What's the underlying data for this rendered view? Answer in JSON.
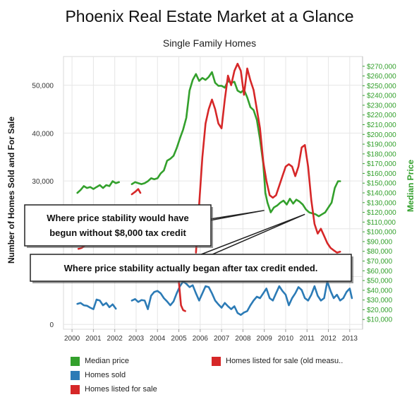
{
  "title": "Phoenix Real Estate Market at a Glance",
  "subtitle": "Single Family Homes",
  "colors": {
    "median_price": "#33a02c",
    "homes_sold": "#2c7bb6",
    "homes_listed": "#d62728",
    "homes_listed_old": "#d62728",
    "right_axis": "#33a02c",
    "grid": "#e6e6e6"
  },
  "legend": [
    {
      "label": "Median price",
      "color": "#33a02c"
    },
    {
      "label": "Homes sold",
      "color": "#2c7bb6"
    },
    {
      "label": "Homes listed for sale",
      "color": "#d62728"
    },
    {
      "label": "Homes listed for sale (old measu..",
      "color": "#d62728"
    }
  ],
  "annotations": [
    {
      "text": "Where price stability would have begun without $8,000 tax credit",
      "lines": [
        "Where price stability would have",
        "begun without $8,000 tax credit"
      ],
      "target_x": 2009.0,
      "target_y": 122000,
      "axis": "right"
    },
    {
      "text": "Where price stability actually began after tax credit ended.",
      "lines": [
        "Where price stability actually began after tax credit ended."
      ],
      "target_x": 2010.9,
      "target_y": 118000,
      "axis": "right"
    }
  ],
  "chart_data": {
    "type": "line",
    "title": "Phoenix Real Estate Market at a Glance",
    "subtitle": "Single Family Homes",
    "xlabel": "",
    "ylabel": "Number of Homes Sold and For Sale",
    "y2label": "Median Price",
    "xlim": [
      1999.6,
      2013.6
    ],
    "ylim": [
      -1000,
      56000
    ],
    "y2lim": [
      0,
      280000
    ],
    "x_ticks": [
      "2000",
      "2001",
      "2002",
      "2003",
      "2004",
      "2005",
      "2006",
      "2007",
      "2008",
      "2009",
      "2010",
      "2011",
      "2012",
      "2013"
    ],
    "y_ticks": [
      "0",
      "10,000",
      "20,000",
      "30,000",
      "40,000",
      "50,000"
    ],
    "y2_ticks": [
      "$10,000",
      "$20,000",
      "$30,000",
      "$40,000",
      "$50,000",
      "$60,000",
      "$70,000",
      "$80,000",
      "$90,000",
      "$100,000",
      "$110,000",
      "$120,000",
      "$130,000",
      "$140,000",
      "$150,000",
      "$160,000",
      "$170,000",
      "$180,000",
      "$190,000",
      "$200,000",
      "$210,000",
      "$220,000",
      "$230,000",
      "$240,000",
      "$250,000",
      "$260,000",
      "$270,000"
    ],
    "grid": true,
    "legend_position": "bottom",
    "series": [
      {
        "name": "Median price",
        "axis": "right",
        "color": "#33a02c",
        "points": [
          [
            2000.25,
            140000
          ],
          [
            2000.4,
            143000
          ],
          [
            2000.55,
            147000
          ],
          [
            2000.7,
            145000
          ],
          [
            2000.85,
            146000
          ],
          [
            2001.0,
            144000
          ],
          [
            2001.15,
            146000
          ],
          [
            2001.3,
            148000
          ],
          [
            2001.45,
            145000
          ],
          [
            2001.6,
            148000
          ],
          [
            2001.75,
            147000
          ],
          [
            2001.9,
            152000
          ],
          [
            2002.05,
            150000
          ],
          [
            2002.2,
            151000
          ],
          [
            2002.8,
            149000
          ],
          [
            2002.95,
            151000
          ],
          [
            2003.1,
            150000
          ],
          [
            2003.25,
            149000
          ],
          [
            2003.4,
            150000
          ],
          [
            2003.55,
            152000
          ],
          [
            2003.7,
            155000
          ],
          [
            2003.85,
            154000
          ],
          [
            2004.0,
            155000
          ],
          [
            2004.15,
            160000
          ],
          [
            2004.3,
            163000
          ],
          [
            2004.45,
            173000
          ],
          [
            2004.6,
            175000
          ],
          [
            2004.75,
            178000
          ],
          [
            2004.9,
            186000
          ],
          [
            2005.05,
            196000
          ],
          [
            2005.2,
            205000
          ],
          [
            2005.35,
            217000
          ],
          [
            2005.5,
            245000
          ],
          [
            2005.65,
            256000
          ],
          [
            2005.8,
            262000
          ],
          [
            2005.95,
            255000
          ],
          [
            2006.1,
            258000
          ],
          [
            2006.25,
            256000
          ],
          [
            2006.4,
            259000
          ],
          [
            2006.55,
            264000
          ],
          [
            2006.7,
            253000
          ],
          [
            2006.85,
            250000
          ],
          [
            2007.0,
            250000
          ],
          [
            2007.15,
            248000
          ],
          [
            2007.3,
            255000
          ],
          [
            2007.45,
            253000
          ],
          [
            2007.6,
            254000
          ],
          [
            2007.75,
            245000
          ],
          [
            2007.9,
            243000
          ],
          [
            2008.05,
            246000
          ],
          [
            2008.2,
            238000
          ],
          [
            2008.35,
            228000
          ],
          [
            2008.5,
            225000
          ],
          [
            2008.65,
            215000
          ],
          [
            2008.8,
            195000
          ],
          [
            2008.95,
            170000
          ],
          [
            2009.05,
            140000
          ],
          [
            2009.15,
            130000
          ],
          [
            2009.3,
            120000
          ],
          [
            2009.45,
            125000
          ],
          [
            2009.6,
            127000
          ],
          [
            2009.75,
            130000
          ],
          [
            2009.9,
            132000
          ],
          [
            2010.05,
            128000
          ],
          [
            2010.2,
            134000
          ],
          [
            2010.35,
            129000
          ],
          [
            2010.5,
            133000
          ],
          [
            2010.65,
            131000
          ],
          [
            2010.8,
            128000
          ],
          [
            2010.95,
            123000
          ],
          [
            2011.1,
            120000
          ],
          [
            2011.25,
            119000
          ],
          [
            2011.4,
            118000
          ],
          [
            2011.55,
            116000
          ],
          [
            2011.7,
            118000
          ],
          [
            2011.85,
            120000
          ],
          [
            2012.0,
            125000
          ],
          [
            2012.15,
            130000
          ],
          [
            2012.3,
            145000
          ],
          [
            2012.45,
            152000
          ],
          [
            2012.55,
            152000
          ]
        ]
      },
      {
        "name": "Homes sold",
        "axis": "left",
        "color": "#2c7bb6",
        "points": [
          [
            2000.25,
            4300
          ],
          [
            2000.4,
            4500
          ],
          [
            2000.55,
            4000
          ],
          [
            2000.7,
            3900
          ],
          [
            2000.85,
            3500
          ],
          [
            2001.0,
            3200
          ],
          [
            2001.15,
            5200
          ],
          [
            2001.3,
            5000
          ],
          [
            2001.45,
            4000
          ],
          [
            2001.6,
            4500
          ],
          [
            2001.75,
            3600
          ],
          [
            2001.9,
            4200
          ],
          [
            2002.05,
            3300
          ],
          [
            2002.8,
            5000
          ],
          [
            2002.95,
            5300
          ],
          [
            2003.1,
            4700
          ],
          [
            2003.25,
            5100
          ],
          [
            2003.4,
            5000
          ],
          [
            2003.55,
            3200
          ],
          [
            2003.7,
            6000
          ],
          [
            2003.85,
            6800
          ],
          [
            2004.0,
            7000
          ],
          [
            2004.15,
            6500
          ],
          [
            2004.3,
            5500
          ],
          [
            2004.45,
            4800
          ],
          [
            2004.6,
            4000
          ],
          [
            2004.75,
            4800
          ],
          [
            2004.9,
            6500
          ],
          [
            2005.05,
            8000
          ],
          [
            2005.2,
            9000
          ],
          [
            2005.35,
            8500
          ],
          [
            2005.5,
            7800
          ],
          [
            2005.65,
            8200
          ],
          [
            2005.8,
            6500
          ],
          [
            2005.95,
            5000
          ],
          [
            2006.1,
            6500
          ],
          [
            2006.25,
            8000
          ],
          [
            2006.4,
            7800
          ],
          [
            2006.55,
            6500
          ],
          [
            2006.7,
            5000
          ],
          [
            2006.85,
            4200
          ],
          [
            2007.0,
            3500
          ],
          [
            2007.15,
            4500
          ],
          [
            2007.3,
            3800
          ],
          [
            2007.45,
            3200
          ],
          [
            2007.6,
            3800
          ],
          [
            2007.75,
            2400
          ],
          [
            2007.9,
            2000
          ],
          [
            2008.05,
            2500
          ],
          [
            2008.2,
            2800
          ],
          [
            2008.35,
            4000
          ],
          [
            2008.5,
            5000
          ],
          [
            2008.65,
            5800
          ],
          [
            2008.8,
            5500
          ],
          [
            2008.95,
            6500
          ],
          [
            2009.1,
            7500
          ],
          [
            2009.25,
            5500
          ],
          [
            2009.4,
            5000
          ],
          [
            2009.55,
            6500
          ],
          [
            2009.7,
            8000
          ],
          [
            2009.85,
            7000
          ],
          [
            2010.0,
            6200
          ],
          [
            2010.15,
            4000
          ],
          [
            2010.3,
            5500
          ],
          [
            2010.45,
            6500
          ],
          [
            2010.6,
            7800
          ],
          [
            2010.75,
            7200
          ],
          [
            2010.9,
            5500
          ],
          [
            2011.05,
            5000
          ],
          [
            2011.2,
            6200
          ],
          [
            2011.35,
            8000
          ],
          [
            2011.5,
            6000
          ],
          [
            2011.65,
            5000
          ],
          [
            2011.8,
            5500
          ],
          [
            2011.95,
            9000
          ],
          [
            2012.1,
            7000
          ],
          [
            2012.25,
            5500
          ],
          [
            2012.4,
            6200
          ],
          [
            2012.55,
            5000
          ],
          [
            2012.7,
            5500
          ],
          [
            2012.85,
            6800
          ],
          [
            2013.0,
            7500
          ],
          [
            2013.1,
            5500
          ]
        ]
      },
      {
        "name": "Homes listed for sale",
        "axis": "left",
        "color": "#d62728",
        "points": [
          [
            2000.3,
            15800
          ],
          [
            2000.45,
            16000
          ],
          [
            2000.6,
            16500
          ],
          [
            2002.8,
            27200
          ],
          [
            2002.95,
            27700
          ],
          [
            2003.1,
            28300
          ],
          [
            2003.2,
            27500
          ],
          [
            2005.0,
            9000
          ],
          [
            2005.1,
            4000
          ],
          [
            2005.2,
            3000
          ],
          [
            2005.3,
            2800
          ],
          [
            2005.8,
            15000
          ],
          [
            2005.95,
            25000
          ],
          [
            2006.1,
            35000
          ],
          [
            2006.25,
            42000
          ],
          [
            2006.4,
            45000
          ],
          [
            2006.55,
            47000
          ],
          [
            2006.7,
            45000
          ],
          [
            2006.85,
            42000
          ],
          [
            2007.0,
            41000
          ],
          [
            2007.15,
            47000
          ],
          [
            2007.3,
            52000
          ],
          [
            2007.45,
            50000
          ],
          [
            2007.6,
            53000
          ],
          [
            2007.75,
            54500
          ],
          [
            2007.9,
            53000
          ],
          [
            2008.05,
            48000
          ],
          [
            2008.2,
            53500
          ],
          [
            2008.35,
            51000
          ],
          [
            2008.5,
            49000
          ],
          [
            2008.65,
            45000
          ],
          [
            2008.8,
            41000
          ],
          [
            2008.95,
            34000
          ],
          [
            2009.1,
            30000
          ],
          [
            2009.25,
            27000
          ],
          [
            2009.4,
            26500
          ],
          [
            2009.55,
            27000
          ],
          [
            2009.7,
            29000
          ],
          [
            2009.85,
            31000
          ],
          [
            2010.0,
            33000
          ],
          [
            2010.15,
            33500
          ],
          [
            2010.3,
            33000
          ],
          [
            2010.45,
            31000
          ],
          [
            2010.6,
            33000
          ],
          [
            2010.75,
            37000
          ],
          [
            2010.9,
            37500
          ],
          [
            2011.05,
            33000
          ],
          [
            2011.2,
            26000
          ],
          [
            2011.35,
            21000
          ],
          [
            2011.5,
            19000
          ],
          [
            2011.65,
            20000
          ],
          [
            2011.8,
            18500
          ],
          [
            2011.95,
            17000
          ],
          [
            2012.1,
            16000
          ],
          [
            2012.25,
            15500
          ],
          [
            2012.4,
            15000
          ],
          [
            2012.55,
            15200
          ]
        ]
      }
    ]
  }
}
